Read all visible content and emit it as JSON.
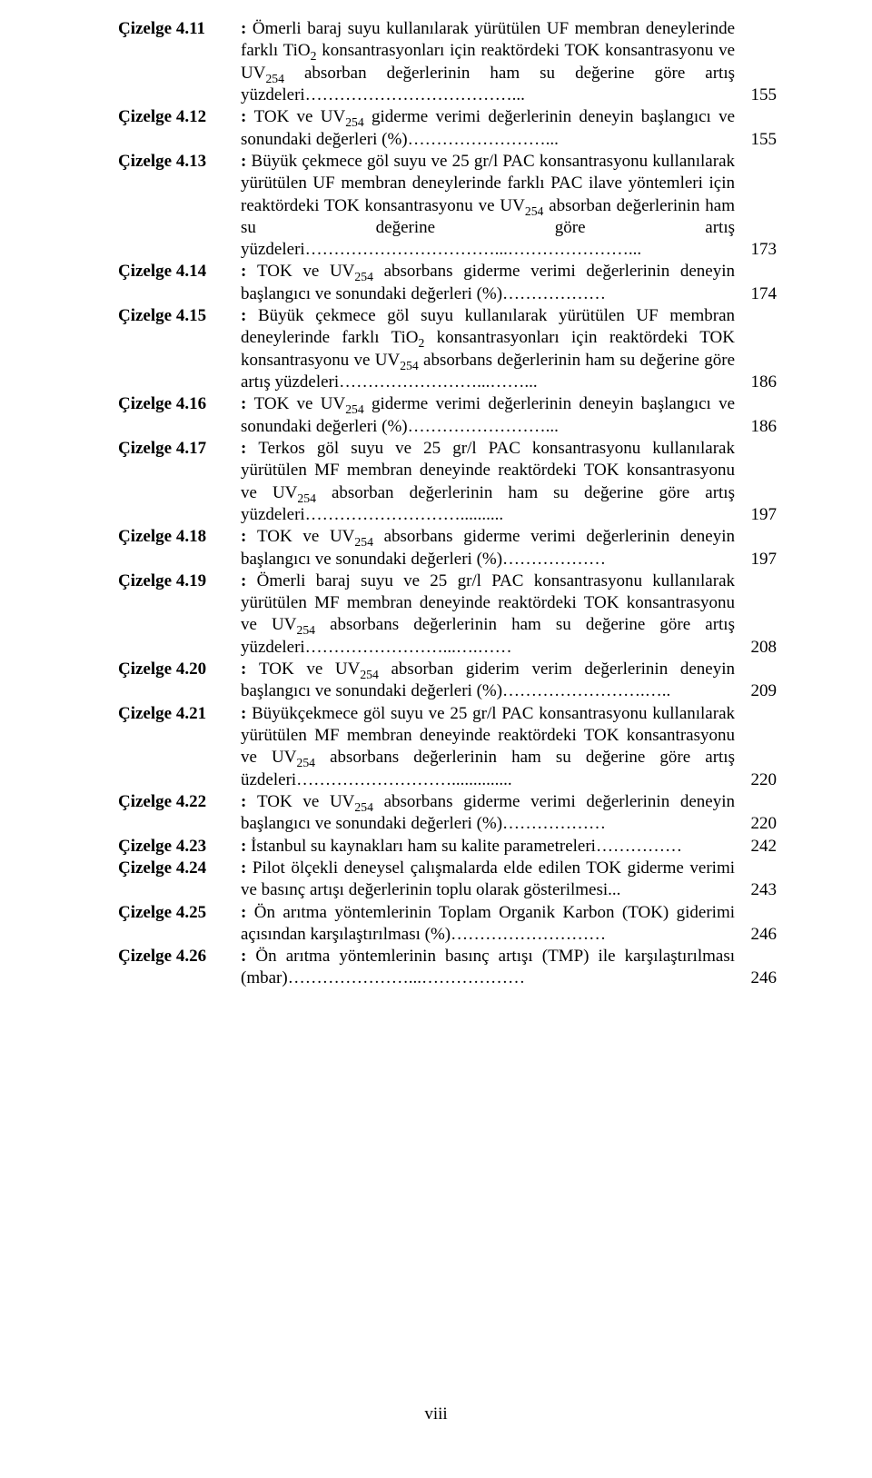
{
  "page_number_roman": "viii",
  "colors": {
    "text": "#000000",
    "background": "#ffffff"
  },
  "typography": {
    "font_family": "Times New Roman",
    "font_size_pt": 14,
    "label_weight": "bold"
  },
  "entries": [
    {
      "label": "Çizelge 4.11",
      "desc_html": "Ömerli baraj suyu kullanılarak yürütülen UF membran deneylerinde farklı TiO<span class=\"sub\">2</span> konsantrasyonları için reaktördeki TOK konsantrasyonu ve UV<span class=\"sub\">254</span> absorban değerlerinin ham su değerine göre artış yüzdeleri………………………………...",
      "page": "155"
    },
    {
      "label": "Çizelge 4.12",
      "desc_html": "TOK ve UV<span class=\"sub\">254</span> giderme verimi değerlerinin deneyin başlangıcı ve sonundaki değerleri (%)……………………...",
      "page": "155"
    },
    {
      "label": "Çizelge 4.13",
      "desc_html": "Büyük çekmece göl suyu ve 25 gr/l PAC konsantrasyonu kullanılarak yürütülen UF membran deneylerinde farklı PAC ilave yöntemleri için reaktördeki TOK konsantrasyonu ve UV<span class=\"sub\">254</span> absorban değerlerinin ham su değerine göre artış yüzdeleri……………………………...…………………...",
      "page": "173"
    },
    {
      "label": "Çizelge 4.14",
      "desc_html": "TOK ve UV<span class=\"sub\">254</span> absorbans giderme verimi değerlerinin deneyin başlangıcı ve sonundaki değerleri (%)………………",
      "page": "174"
    },
    {
      "label": "Çizelge 4.15",
      "desc_html": "Büyük çekmece göl suyu kullanılarak yürütülen UF membran deneylerinde farklı TiO<span class=\"sub\">2</span> konsantrasyonları için reaktördeki TOK konsantrasyonu ve UV<span class=\"sub\">254</span> absorbans değerlerinin ham su değerine göre artış yüzdeleri……………………...……...",
      "page": "186"
    },
    {
      "label": "Çizelge 4.16",
      "desc_html": "TOK ve UV<span class=\"sub\">254</span> giderme verimi değerlerinin deneyin başlangıcı ve sonundaki değerleri (%)……………………...",
      "page": "186"
    },
    {
      "label": "Çizelge 4.17",
      "desc_html": "Terkos göl suyu ve 25 gr/l PAC konsantrasyonu kullanılarak yürütülen MF membran deneyinde reaktördeki TOK konsantrasyonu ve UV<span class=\"sub\">254</span> absorban değerlerinin ham su değerine göre artış yüzdeleri………………………..........",
      "page": "197"
    },
    {
      "label": "Çizelge 4.18",
      "desc_html": "TOK ve UV<span class=\"sub\">254</span> absorbans giderme verimi değerlerinin deneyin başlangıcı ve sonundaki değerleri (%)………………",
      "page": "197"
    },
    {
      "label": "Çizelge 4.19",
      "desc_html": "Ömerli baraj suyu ve 25 gr/l PAC konsantrasyonu kullanılarak yürütülen MF membran deneyinde reaktördeki TOK konsantrasyonu ve UV<span class=\"sub\">254</span> absorbans değerlerinin ham su değerine göre artış yüzdeleri……………………...….……",
      "page": "208"
    },
    {
      "label": "Çizelge 4.20",
      "desc_html": "TOK ve UV<span class=\"sub\">254</span> absorban giderim verim değerlerinin deneyin başlangıcı ve sonundaki değerleri (%)…………………….…..",
      "page": "209"
    },
    {
      "label": "Çizelge 4.21",
      "desc_html": "Büyükçekmece göl suyu ve 25 gr/l PAC konsantrasyonu kullanılarak yürütülen MF membran deneyinde reaktördeki TOK konsantrasyonu ve UV<span class=\"sub\">254</span> absorbans değerlerinin ham su değerine göre artış üzdeleri………………………..............",
      "page": "220"
    },
    {
      "label": "Çizelge 4.22",
      "desc_html": "TOK ve UV<span class=\"sub\">254</span> absorbans giderme verimi değerlerinin deneyin başlangıcı ve sonundaki değerleri (%)………………",
      "page": "220"
    },
    {
      "label": "Çizelge 4.23",
      "desc_html": "İstanbul su kaynakları ham su kalite parametreleri……………",
      "page": "242"
    },
    {
      "label": "Çizelge 4.24",
      "desc_html": "Pilot ölçekli deneysel çalışmalarda elde edilen TOK giderme verimi ve basınç artışı değerlerinin toplu olarak gösterilmesi...",
      "page": "243"
    },
    {
      "label": "Çizelge 4.25",
      "desc_html": "Ön arıtma yöntemlerinin Toplam Organik Karbon (TOK) giderimi açısından karşılaştırılması (%)………………………",
      "page": "246"
    },
    {
      "label": "Çizelge 4.26",
      "desc_html": "Ön arıtma yöntemlerinin basınç artışı (TMP) ile karşılaştırılması (mbar)…………………...………………",
      "page": "246"
    }
  ]
}
